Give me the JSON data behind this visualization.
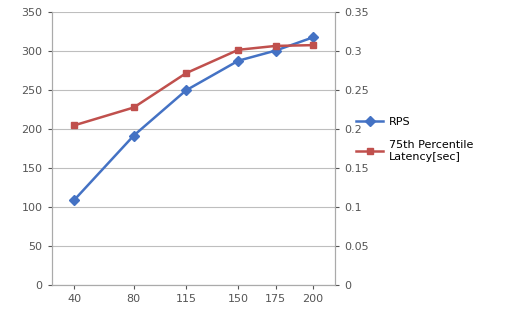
{
  "x": [
    40,
    80,
    115,
    150,
    175,
    200
  ],
  "rps": [
    109,
    192,
    250,
    288,
    301,
    318
  ],
  "latency": [
    0.205,
    0.228,
    0.272,
    0.302,
    0.307,
    0.308
  ],
  "rps_color": "#4472C4",
  "latency_color": "#C0504D",
  "rps_label": "RPS",
  "latency_label": "75th Percentile\nLatency[sec]",
  "ylim_left": [
    0,
    350
  ],
  "ylim_right": [
    0,
    0.35
  ],
  "yticks_left": [
    0,
    50,
    100,
    150,
    200,
    250,
    300,
    350
  ],
  "yticks_right": [
    0,
    0.05,
    0.1,
    0.15,
    0.2,
    0.25,
    0.3,
    0.35
  ],
  "ytick_right_labels": [
    "0",
    "0.05",
    "0.1",
    "0.15",
    "0.2",
    "0.25",
    "0.3",
    "0.35"
  ],
  "xticks": [
    40,
    80,
    115,
    150,
    175,
    200
  ],
  "bg_color": "#FFFFFF",
  "grid_color": "#BEBEBE",
  "xlim": [
    25,
    215
  ]
}
